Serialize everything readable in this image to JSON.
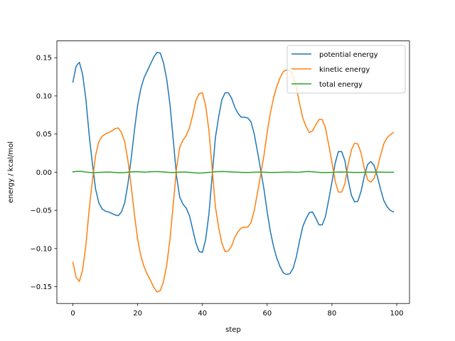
{
  "chart_data": {
    "type": "line",
    "xlabel": "step",
    "ylabel": "energy / kcal/mol",
    "xlim": [
      -4.95,
      103.95
    ],
    "ylim": [
      -0.172,
      0.172
    ],
    "xticks": [
      0,
      20,
      40,
      60,
      80,
      100
    ],
    "yticks": [
      -0.15,
      -0.1,
      -0.05,
      0.0,
      0.05,
      0.1,
      0.15
    ],
    "ytick_labels": [
      "−0.15",
      "−0.10",
      "−0.05",
      "0.00",
      "0.05",
      "0.10",
      "0.15"
    ],
    "grid": false,
    "legend_position": "top-right",
    "series": [
      {
        "name": "potential energy",
        "color": "#1f77b4",
        "x": [
          0,
          1,
          2,
          3,
          4,
          5,
          6,
          7,
          8,
          9,
          10,
          11,
          12,
          13,
          14,
          15,
          16,
          17,
          18,
          19,
          20,
          21,
          22,
          23,
          24,
          25,
          26,
          27,
          28,
          29,
          30,
          31,
          32,
          33,
          34,
          35,
          36,
          37,
          38,
          39,
          40,
          41,
          42,
          43,
          44,
          45,
          46,
          47,
          48,
          49,
          50,
          51,
          52,
          53,
          54,
          55,
          56,
          57,
          58,
          59,
          60,
          61,
          62,
          63,
          64,
          65,
          66,
          67,
          68,
          69,
          70,
          71,
          72,
          73,
          74,
          75,
          76,
          77,
          78,
          79,
          80,
          81,
          82,
          83,
          84,
          85,
          86,
          87,
          88,
          89,
          90,
          91,
          92,
          93,
          94,
          95,
          96,
          97,
          98,
          99
        ],
        "values": [
          0.118,
          0.139,
          0.144,
          0.128,
          0.096,
          0.05,
          0.012,
          -0.022,
          -0.04,
          -0.048,
          -0.051,
          -0.052,
          -0.054,
          -0.056,
          -0.057,
          -0.052,
          -0.04,
          -0.015,
          0.018,
          0.055,
          0.088,
          0.11,
          0.124,
          0.133,
          0.142,
          0.151,
          0.157,
          0.156,
          0.143,
          0.121,
          0.088,
          0.042,
          -0.005,
          -0.033,
          -0.042,
          -0.047,
          -0.057,
          -0.075,
          -0.093,
          -0.104,
          -0.105,
          -0.088,
          -0.055,
          -0.005,
          0.045,
          0.072,
          0.095,
          0.104,
          0.104,
          0.097,
          0.085,
          0.077,
          0.072,
          0.072,
          0.071,
          0.066,
          0.05,
          0.027,
          0.003,
          -0.022,
          -0.052,
          -0.078,
          -0.098,
          -0.113,
          -0.124,
          -0.132,
          -0.134,
          -0.133,
          -0.126,
          -0.111,
          -0.09,
          -0.071,
          -0.061,
          -0.053,
          -0.052,
          -0.06,
          -0.069,
          -0.069,
          -0.058,
          -0.036,
          -0.013,
          0.012,
          0.027,
          0.027,
          0.015,
          -0.01,
          -0.03,
          -0.039,
          -0.038,
          -0.025,
          -0.005,
          0.01,
          0.014,
          0.009,
          -0.005,
          -0.022,
          -0.037,
          -0.045,
          -0.05,
          -0.052
        ]
      },
      {
        "name": "kinetic energy",
        "color": "#ff7f0e",
        "x": [
          0,
          1,
          2,
          3,
          4,
          5,
          6,
          7,
          8,
          9,
          10,
          11,
          12,
          13,
          14,
          15,
          16,
          17,
          18,
          19,
          20,
          21,
          22,
          23,
          24,
          25,
          26,
          27,
          28,
          29,
          30,
          31,
          32,
          33,
          34,
          35,
          36,
          37,
          38,
          39,
          40,
          41,
          42,
          43,
          44,
          45,
          46,
          47,
          48,
          49,
          50,
          51,
          52,
          53,
          54,
          55,
          56,
          57,
          58,
          59,
          60,
          61,
          62,
          63,
          64,
          65,
          66,
          67,
          68,
          69,
          70,
          71,
          72,
          73,
          74,
          75,
          76,
          77,
          78,
          79,
          80,
          81,
          82,
          83,
          84,
          85,
          86,
          87,
          88,
          89,
          90,
          91,
          92,
          93,
          94,
          95,
          96,
          97,
          98,
          99
        ],
        "values": [
          -0.118,
          -0.138,
          -0.143,
          -0.128,
          -0.096,
          -0.05,
          -0.012,
          0.022,
          0.04,
          0.047,
          0.05,
          0.052,
          0.054,
          0.057,
          0.058,
          0.052,
          0.04,
          0.015,
          -0.018,
          -0.055,
          -0.088,
          -0.11,
          -0.124,
          -0.134,
          -0.142,
          -0.151,
          -0.157,
          -0.155,
          -0.143,
          -0.121,
          -0.087,
          -0.042,
          0.005,
          0.033,
          0.042,
          0.048,
          0.058,
          0.075,
          0.094,
          0.103,
          0.104,
          0.087,
          0.055,
          0.005,
          -0.045,
          -0.072,
          -0.093,
          -0.104,
          -0.103,
          -0.097,
          -0.085,
          -0.078,
          -0.073,
          -0.072,
          -0.072,
          -0.066,
          -0.05,
          -0.027,
          -0.003,
          0.022,
          0.052,
          0.078,
          0.098,
          0.113,
          0.124,
          0.132,
          0.134,
          0.133,
          0.126,
          0.111,
          0.09,
          0.071,
          0.06,
          0.052,
          0.054,
          0.062,
          0.069,
          0.069,
          0.058,
          0.036,
          0.013,
          -0.012,
          -0.026,
          -0.026,
          -0.015,
          0.01,
          0.029,
          0.038,
          0.037,
          0.025,
          0.005,
          -0.01,
          -0.013,
          -0.008,
          0.005,
          0.022,
          0.037,
          0.045,
          0.049,
          0.052
        ]
      },
      {
        "name": "total energy",
        "color": "#2ca02c",
        "x": [
          0,
          1,
          2,
          3,
          4,
          5,
          6,
          7,
          8,
          9,
          10,
          11,
          12,
          13,
          14,
          15,
          16,
          17,
          18,
          19,
          20,
          21,
          22,
          23,
          24,
          25,
          26,
          27,
          28,
          29,
          30,
          31,
          32,
          33,
          34,
          35,
          36,
          37,
          38,
          39,
          40,
          41,
          42,
          43,
          44,
          45,
          46,
          47,
          48,
          49,
          50,
          51,
          52,
          53,
          54,
          55,
          56,
          57,
          58,
          59,
          60,
          61,
          62,
          63,
          64,
          65,
          66,
          67,
          68,
          69,
          70,
          71,
          72,
          73,
          74,
          75,
          76,
          77,
          78,
          79,
          80,
          81,
          82,
          83,
          84,
          85,
          86,
          87,
          88,
          89,
          90,
          91,
          92,
          93,
          94,
          95,
          96,
          97,
          98,
          99
        ],
        "values": [
          0.0005,
          0.001,
          0.0012,
          0.0008,
          0.0002,
          -0.0002,
          -0.0005,
          -0.0004,
          -0.0002,
          -0.0001,
          0.0,
          0.0001,
          0.0,
          -0.0003,
          -0.0006,
          -0.0006,
          -0.0004,
          0.0,
          0.0004,
          0.0006,
          0.0006,
          0.0004,
          0.0002,
          0.0003,
          0.0006,
          0.0008,
          0.0008,
          0.0006,
          0.0003,
          0.0,
          -0.0003,
          -0.0004,
          -0.0002,
          0.0001,
          0.0002,
          0.0001,
          -0.0002,
          -0.0006,
          -0.0009,
          -0.0011,
          -0.001,
          -0.0006,
          -0.0002,
          0.0002,
          0.0006,
          0.0008,
          0.0009,
          0.0008,
          0.0006,
          0.0004,
          0.0002,
          0.0,
          -0.0002,
          -0.0003,
          -0.0003,
          -0.0002,
          0.0,
          0.0001,
          0.0001,
          0.0,
          -0.0002,
          -0.0003,
          -0.0003,
          -0.0002,
          -0.0001,
          0.0,
          0.0001,
          0.0001,
          0.0,
          -0.0001,
          0.0,
          0.0004,
          0.0008,
          0.0009,
          0.0006,
          0.0002,
          -0.0002,
          -0.0004,
          -0.0004,
          -0.0003,
          -0.0002,
          0.0,
          0.0002,
          0.0003,
          0.0002,
          0.0,
          -0.0002,
          -0.0003,
          -0.0003,
          -0.0002,
          -0.0001,
          0.0,
          0.0001,
          0.0002,
          0.0002,
          0.0001,
          0.0,
          -0.0001,
          -0.0001,
          0.0
        ]
      }
    ]
  }
}
